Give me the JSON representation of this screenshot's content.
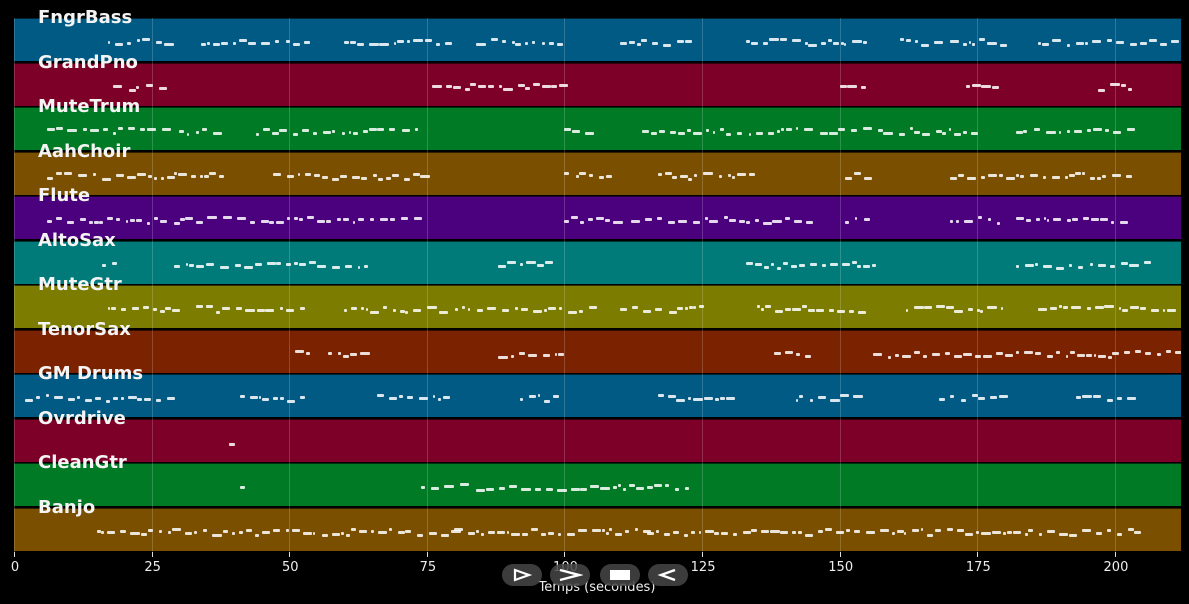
{
  "tracks": [
    {
      "name": "FngrBass",
      "color": "#005a84"
    },
    {
      "name": "GrandPno",
      "color": "#7d0029"
    },
    {
      "name": "MuteTrum",
      "color": "#007a25"
    },
    {
      "name": "AahChoir",
      "color": "#7a5000"
    },
    {
      "name": "Flute",
      "color": "#4b007e"
    },
    {
      "name": "AltoSax",
      "color": "#007b7a"
    },
    {
      "name": "MuteGtr",
      "color": "#7b7c00"
    },
    {
      "name": "TenorSax",
      "color": "#7b2200"
    },
    {
      "name": "GM Drums",
      "color": "#005a84"
    },
    {
      "name": "Ovrdrive",
      "color": "#7d0029"
    },
    {
      "name": "CleanGtr",
      "color": "#007a25"
    },
    {
      "name": "Banjo",
      "color": "#7a5000"
    }
  ],
  "x_axis": {
    "label": "Temps (secondes)",
    "ticks": [
      "0",
      "25",
      "50",
      "75",
      "100",
      "125",
      "150",
      "175",
      "200"
    ],
    "tick_values": [
      0,
      25,
      50,
      75,
      100,
      125,
      150,
      175,
      200
    ],
    "range": [
      0,
      212
    ]
  },
  "controls": [
    {
      "name": "play-icon"
    },
    {
      "name": "forward-icon"
    },
    {
      "name": "stop-icon"
    },
    {
      "name": "rewind-icon"
    }
  ],
  "note_segments": [
    [
      [
        17,
        28
      ],
      [
        34,
        53
      ],
      [
        60,
        80
      ],
      [
        84,
        100
      ],
      [
        110,
        123
      ],
      [
        133,
        155
      ],
      [
        161,
        180
      ],
      [
        186,
        211
      ]
    ],
    [
      [
        18,
        28
      ],
      [
        76,
        99
      ],
      [
        150,
        154
      ],
      [
        173,
        178
      ],
      [
        197,
        203
      ]
    ],
    [
      [
        6,
        28
      ],
      [
        30,
        37
      ],
      [
        44,
        74
      ],
      [
        100,
        104
      ],
      [
        114,
        175
      ],
      [
        182,
        203
      ]
    ],
    [
      [
        6,
        28
      ],
      [
        29,
        38
      ],
      [
        47,
        74
      ],
      [
        100,
        109
      ],
      [
        117,
        135
      ],
      [
        151,
        155
      ],
      [
        170,
        203
      ]
    ],
    [
      [
        6,
        28
      ],
      [
        29,
        54
      ],
      [
        55,
        74
      ],
      [
        100,
        109
      ],
      [
        112,
        145
      ],
      [
        151,
        155
      ],
      [
        170,
        180
      ],
      [
        182,
        203
      ]
    ],
    [
      [
        16,
        18
      ],
      [
        29,
        54
      ],
      [
        55,
        65
      ],
      [
        88,
        97
      ],
      [
        133,
        157
      ],
      [
        182,
        206
      ]
    ],
    [
      [
        17,
        29
      ],
      [
        33,
        53
      ],
      [
        60,
        105
      ],
      [
        110,
        125
      ],
      [
        135,
        155
      ],
      [
        162,
        180
      ],
      [
        186,
        211
      ]
    ],
    [
      [
        51,
        53
      ],
      [
        57,
        64
      ],
      [
        88,
        99
      ],
      [
        138,
        145
      ],
      [
        156,
        211
      ]
    ],
    [
      [
        2,
        28
      ],
      [
        41,
        53
      ],
      [
        66,
        79
      ],
      [
        92,
        99
      ],
      [
        117,
        130
      ],
      [
        142,
        154
      ],
      [
        168,
        180
      ],
      [
        193,
        204
      ]
    ],
    [
      [
        39,
        41
      ]
    ],
    [
      [
        41,
        43
      ],
      [
        74,
        122
      ]
    ],
    [
      [
        15,
        80
      ],
      [
        80,
        115
      ],
      [
        115,
        204
      ]
    ]
  ]
}
